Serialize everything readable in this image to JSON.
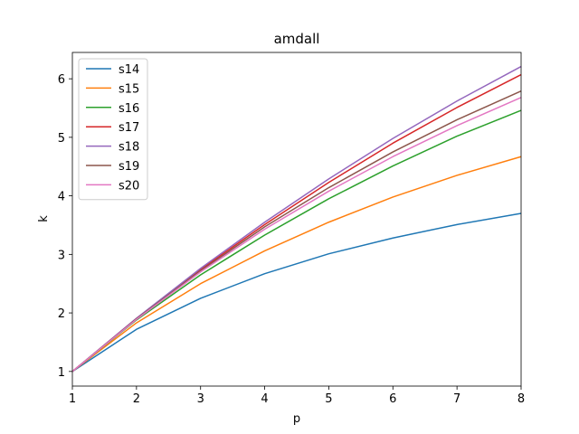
{
  "chart_data": {
    "type": "line",
    "title": "amdall",
    "xlabel": "p",
    "ylabel": "k",
    "xlim": [
      1,
      8
    ],
    "ylim": [
      0.75,
      6.45
    ],
    "xticks": [
      1,
      2,
      3,
      4,
      5,
      6,
      7,
      8
    ],
    "yticks": [
      1,
      2,
      3,
      4,
      5,
      6
    ],
    "grid": false,
    "legend_position": "top-left",
    "x": [
      1,
      2,
      3,
      4,
      5,
      6,
      7,
      8
    ],
    "series": [
      {
        "name": "s14",
        "color": "#1f77b4",
        "values": [
          1.0,
          1.72,
          2.25,
          2.67,
          3.01,
          3.28,
          3.51,
          3.7
        ]
      },
      {
        "name": "s15",
        "color": "#ff7f0e",
        "values": [
          1.0,
          1.83,
          2.5,
          3.06,
          3.55,
          3.98,
          4.35,
          4.67
        ]
      },
      {
        "name": "s16",
        "color": "#2ca02c",
        "values": [
          1.0,
          1.88,
          2.65,
          3.33,
          3.95,
          4.51,
          5.02,
          5.46
        ]
      },
      {
        "name": "s17",
        "color": "#d62728",
        "values": [
          1.0,
          1.9,
          2.74,
          3.51,
          4.23,
          4.9,
          5.51,
          6.07
        ]
      },
      {
        "name": "s18",
        "color": "#9467bd",
        "values": [
          1.0,
          1.91,
          2.76,
          3.55,
          4.29,
          4.98,
          5.62,
          6.21
        ]
      },
      {
        "name": "s19",
        "color": "#8c564b",
        "values": [
          1.0,
          1.9,
          2.72,
          3.47,
          4.14,
          4.75,
          5.3,
          5.79
        ]
      },
      {
        "name": "s20",
        "color": "#e377c2",
        "values": [
          1.0,
          1.89,
          2.7,
          3.43,
          4.08,
          4.67,
          5.2,
          5.68
        ]
      }
    ]
  }
}
